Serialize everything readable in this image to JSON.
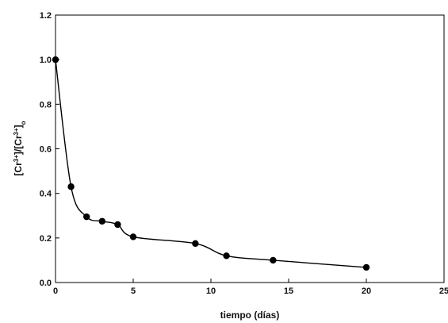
{
  "chart_data": {
    "type": "line",
    "title": "",
    "xlabel": "tiempo (días)",
    "ylabel_parts": {
      "open1": "[Cr",
      "sup1": "3+",
      "mid": "]/[Cr",
      "sup2": "3+",
      "close": "]",
      "sub": "o"
    },
    "xlim": [
      0,
      25
    ],
    "ylim": [
      0.0,
      1.2
    ],
    "xticks": [
      0,
      5,
      10,
      15,
      20,
      25
    ],
    "yticks": [
      0.0,
      0.2,
      0.4,
      0.6,
      0.8,
      1.0,
      1.2
    ],
    "xtick_labels": [
      "0",
      "5",
      "10",
      "15",
      "20",
      "25"
    ],
    "ytick_labels": [
      "0.0",
      "0.2",
      "0.4",
      "0.6",
      "0.8",
      "1.0",
      "1.2"
    ],
    "grid": false,
    "series": [
      {
        "x": [
          0,
          1,
          2,
          3,
          4,
          5,
          9,
          11,
          14,
          20
        ],
        "y": [
          1.0,
          0.43,
          0.295,
          0.275,
          0.26,
          0.205,
          0.175,
          0.12,
          0.1,
          0.068
        ],
        "marker": "circle",
        "color": "#000000"
      }
    ]
  }
}
